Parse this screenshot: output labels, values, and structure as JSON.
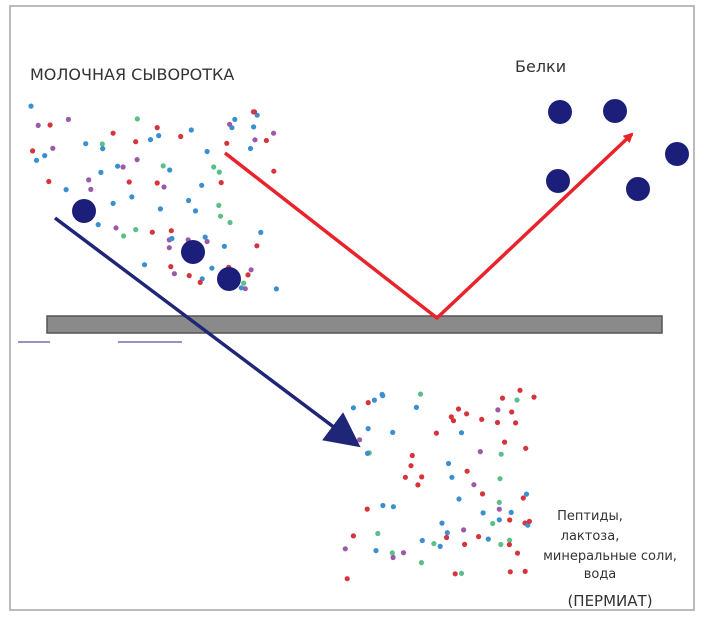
{
  "labels": {
    "whey": "МОЛОЧНАЯ СЫВОРОТКА",
    "proteins": "Белки",
    "permeate_content": [
      "Пептиды,",
      "лактоза,",
      "минеральные соли,",
      "вода"
    ],
    "permeate": "(ПЕРМИАТ)"
  }
}
